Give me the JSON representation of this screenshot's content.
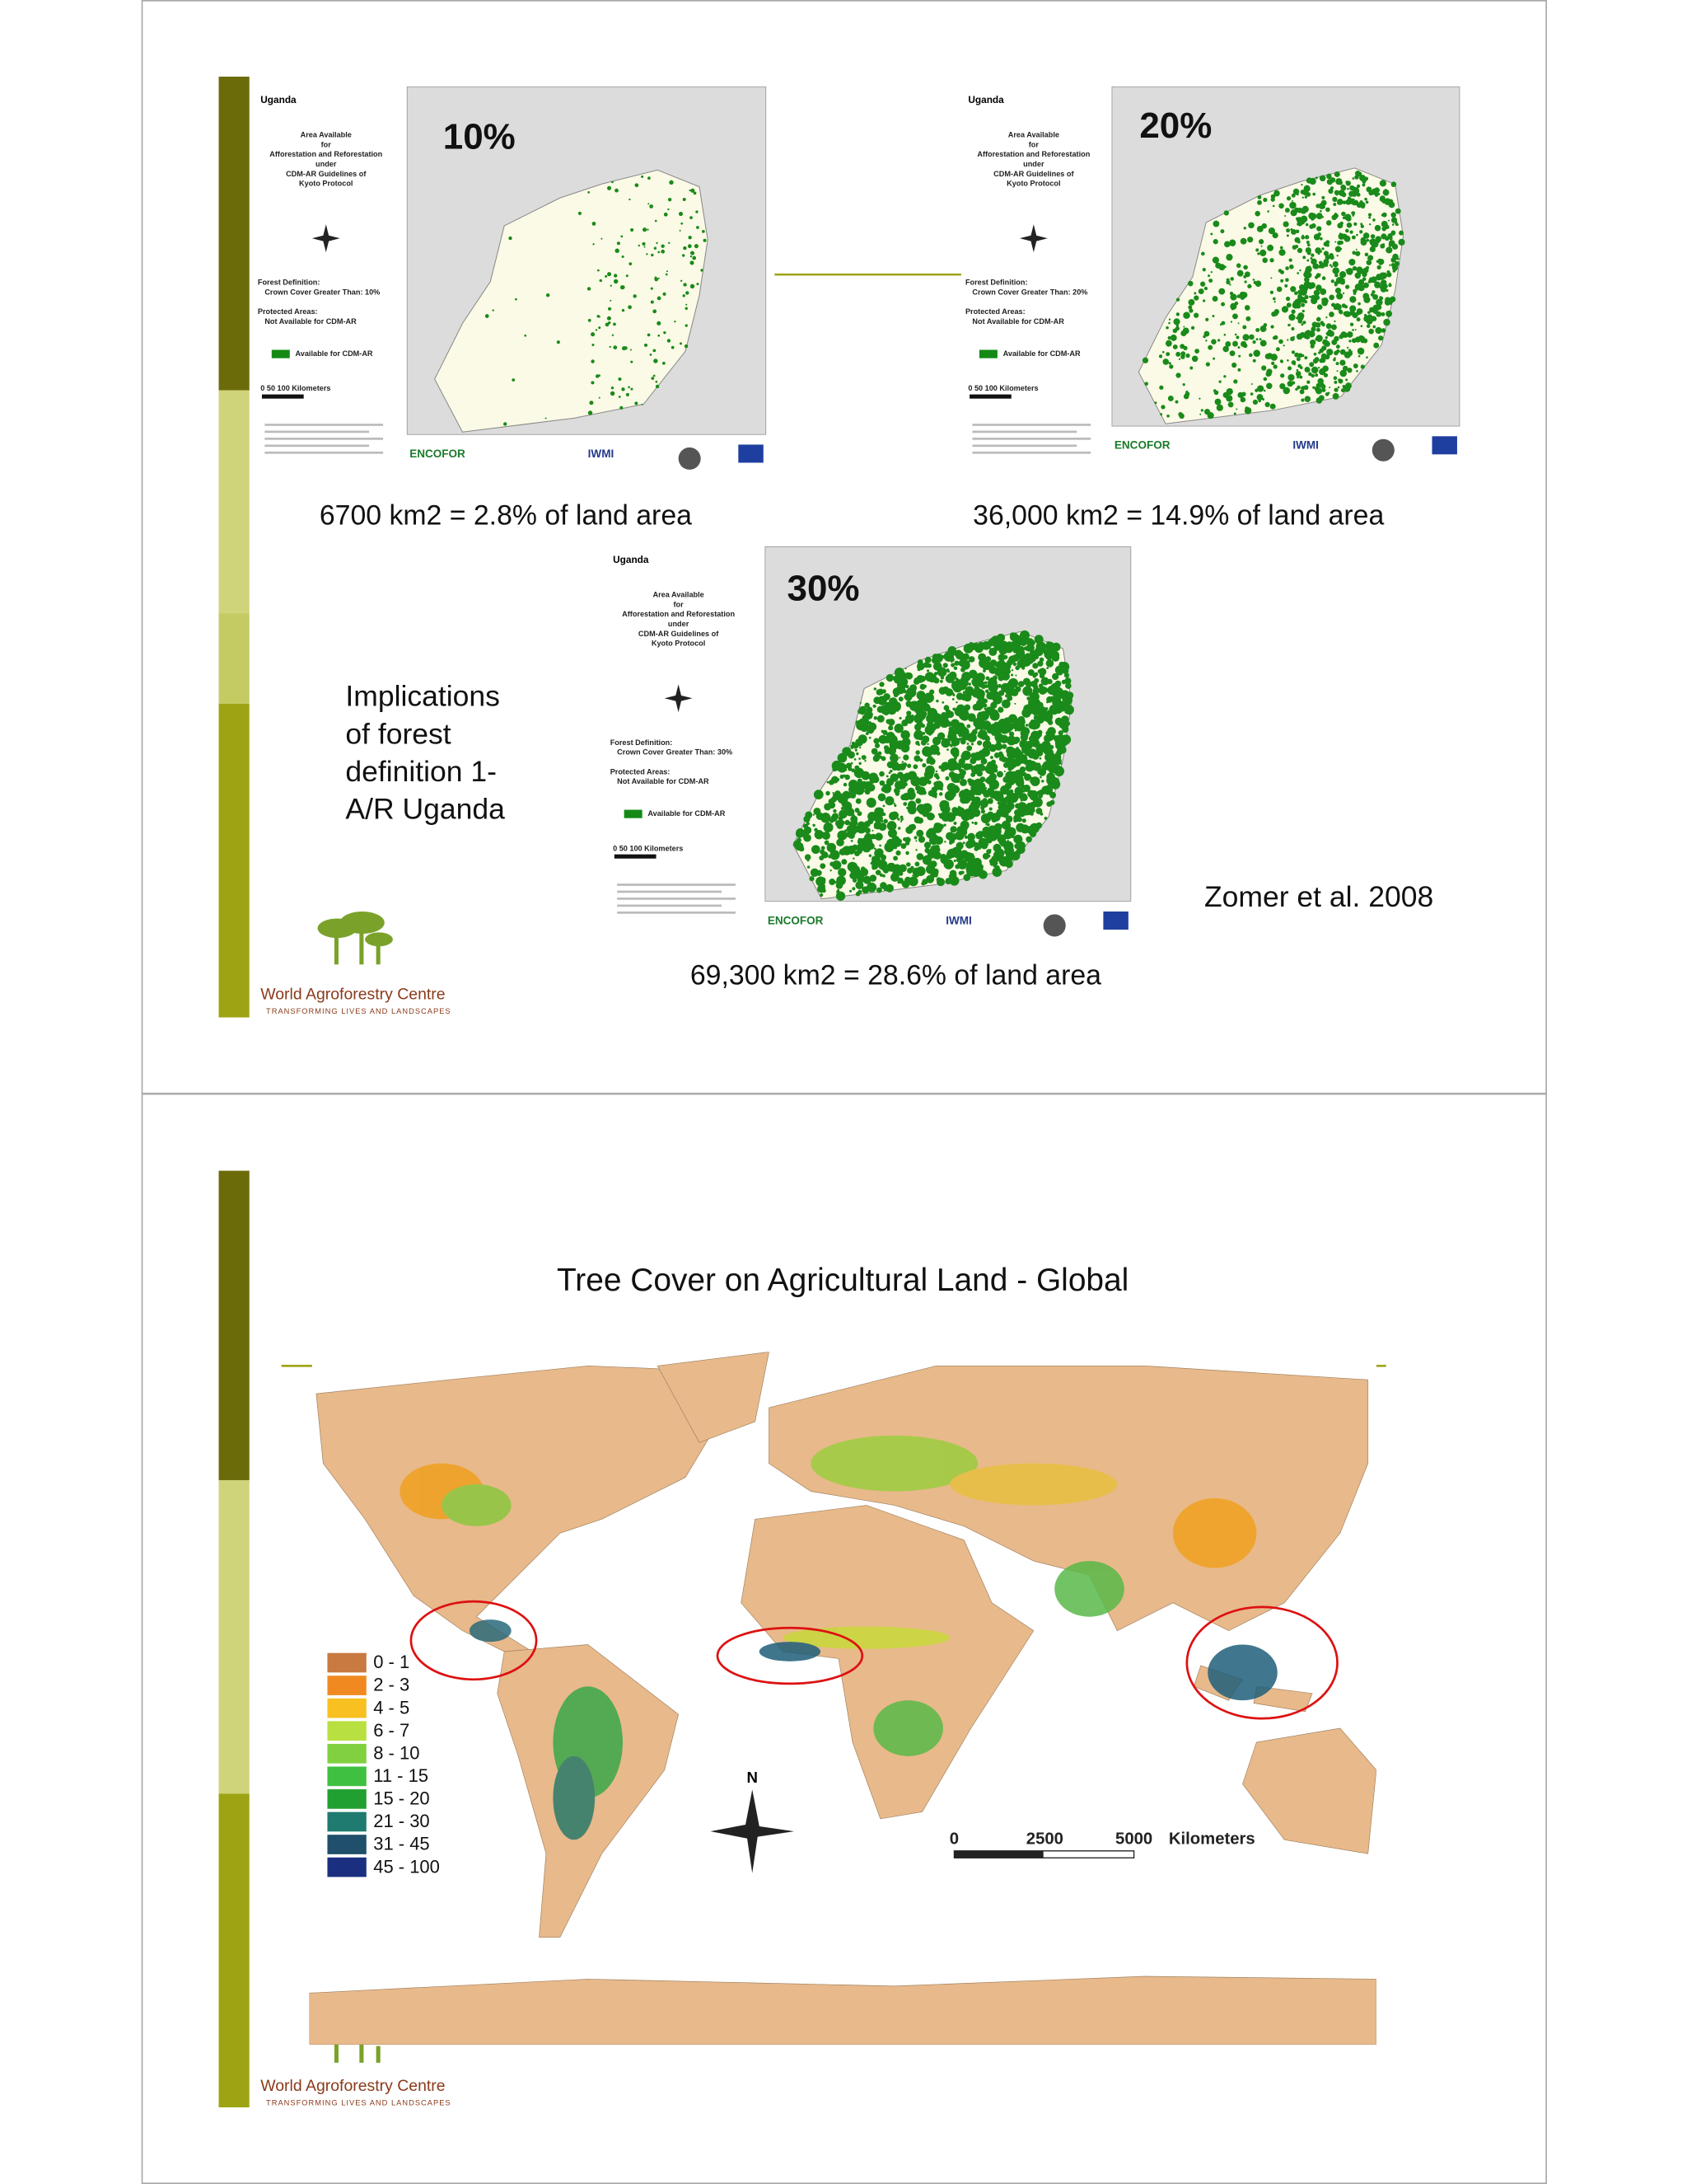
{
  "slides": [
    {
      "maps": [
        {
          "country": "Uganda",
          "heading_lines": [
            "Area Available",
            "for",
            "Afforestation and Reforestation",
            "under",
            "CDM-AR Guidelines of",
            "Kyoto Protocol"
          ],
          "forest_definition": "Forest Definition:",
          "crown_cover": "Crown Cover Greater Than:  10%",
          "protected_heading": "Protected Areas:",
          "protected": "Not Available for CDM-AR",
          "legend": "Available for CDM-AR",
          "scale": "0    50   100   Kilometers",
          "percent": "10%",
          "caption": "6700 km2 = 2.8% of land area"
        },
        {
          "country": "Uganda",
          "heading_lines": [
            "Area Available",
            "for",
            "Afforestation and Reforestation",
            "under",
            "CDM-AR Guidelines of",
            "Kyoto Protocol"
          ],
          "forest_definition": "Forest Definition:",
          "crown_cover": "Crown Cover Greater Than:  20%",
          "protected_heading": "Protected Areas:",
          "protected": "Not Available for CDM-AR",
          "legend": "Available for CDM-AR",
          "scale": "0    50   100   Kilometers",
          "percent": "20%",
          "caption": "36,000 km2 = 14.9% of land area"
        },
        {
          "country": "Uganda",
          "heading_lines": [
            "Area Available",
            "for",
            "Afforestation and Reforestation",
            "under",
            "CDM-AR Guidelines of",
            "Kyoto Protocol"
          ],
          "forest_definition": "Forest Definition:",
          "crown_cover": "Crown Cover Greater Than:  30%",
          "protected_heading": "Protected Areas:",
          "protected": "Not Available for CDM-AR",
          "legend": "Available for CDM-AR",
          "scale": "0    50   100   Kilometers",
          "percent": "30%",
          "caption": "69,300 km2 = 28.6% of land area"
        }
      ],
      "partner_logos": [
        "ENCOFOR",
        "IWMI"
      ],
      "title_lines": [
        "Implications",
        "of  forest",
        "definition 1-",
        "A/R Uganda"
      ],
      "citation": "Zomer et al. 2008",
      "logo": {
        "name": "World Agroforestry Centre",
        "tagline": "TRANSFORMING LIVES AND LANDSCAPES"
      }
    },
    {
      "title": "Tree Cover on Agricultural Land - Global",
      "legend": [
        "0 - 1",
        "2 - 3",
        "4 - 5",
        "6 - 7",
        "8 - 10",
        "11 - 15",
        "15 - 20",
        "21 - 30",
        "31 - 45",
        "45 - 100"
      ],
      "north": "N",
      "scale": [
        "0",
        "2500",
        "5000",
        "Kilometers"
      ],
      "logo": {
        "name": "World Agroforestry Centre",
        "tagline": "TRANSFORMING LIVES AND LANDSCAPES"
      }
    }
  ]
}
